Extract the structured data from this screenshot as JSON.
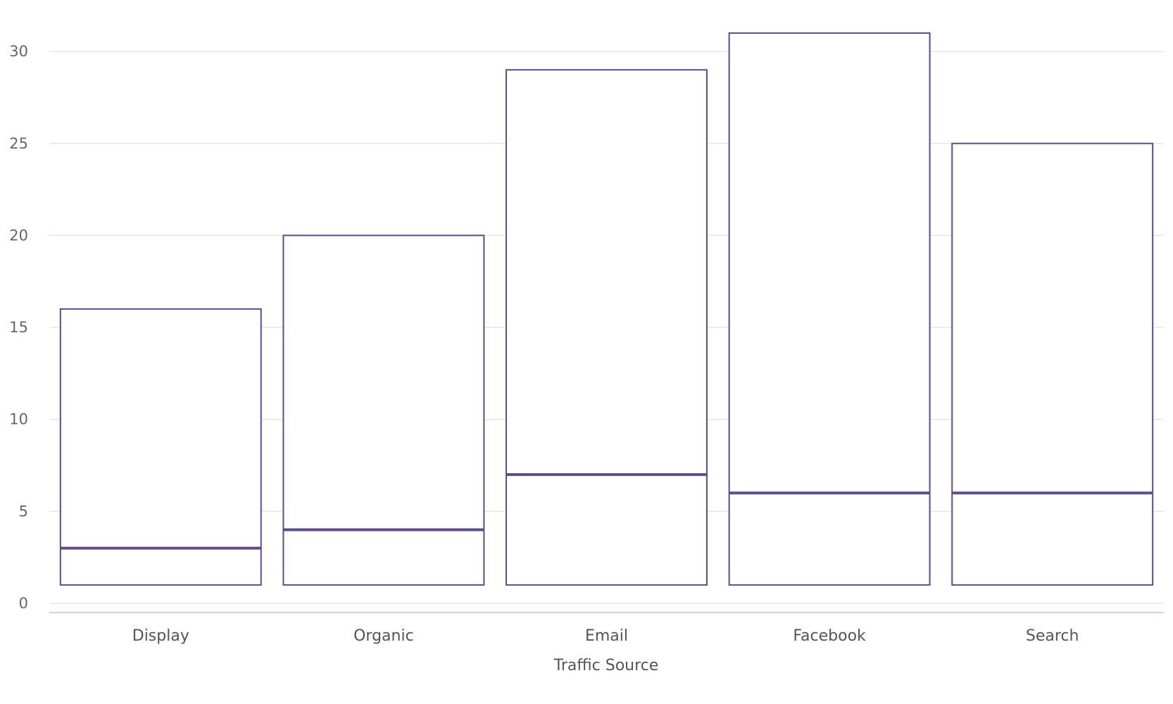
{
  "chart_data": {
    "type": "boxplot",
    "xlabel": "Traffic Source",
    "ylabel": "",
    "categories": [
      "Display",
      "Organic",
      "Email",
      "Facebook",
      "Search"
    ],
    "series": [
      {
        "low": [
          1,
          1,
          1,
          1,
          1
        ],
        "median": [
          3,
          4,
          7,
          6,
          6
        ],
        "high": [
          16,
          20,
          29,
          31,
          25
        ]
      }
    ],
    "ylim": [
      0,
      31
    ],
    "yticks": [
      0,
      5,
      10,
      15,
      20,
      25,
      30
    ],
    "grid": true,
    "legend": "none",
    "colors": {
      "box": "#5f4b8b",
      "grid": "#e6e6e6",
      "axis": "#ccd6eb"
    }
  }
}
